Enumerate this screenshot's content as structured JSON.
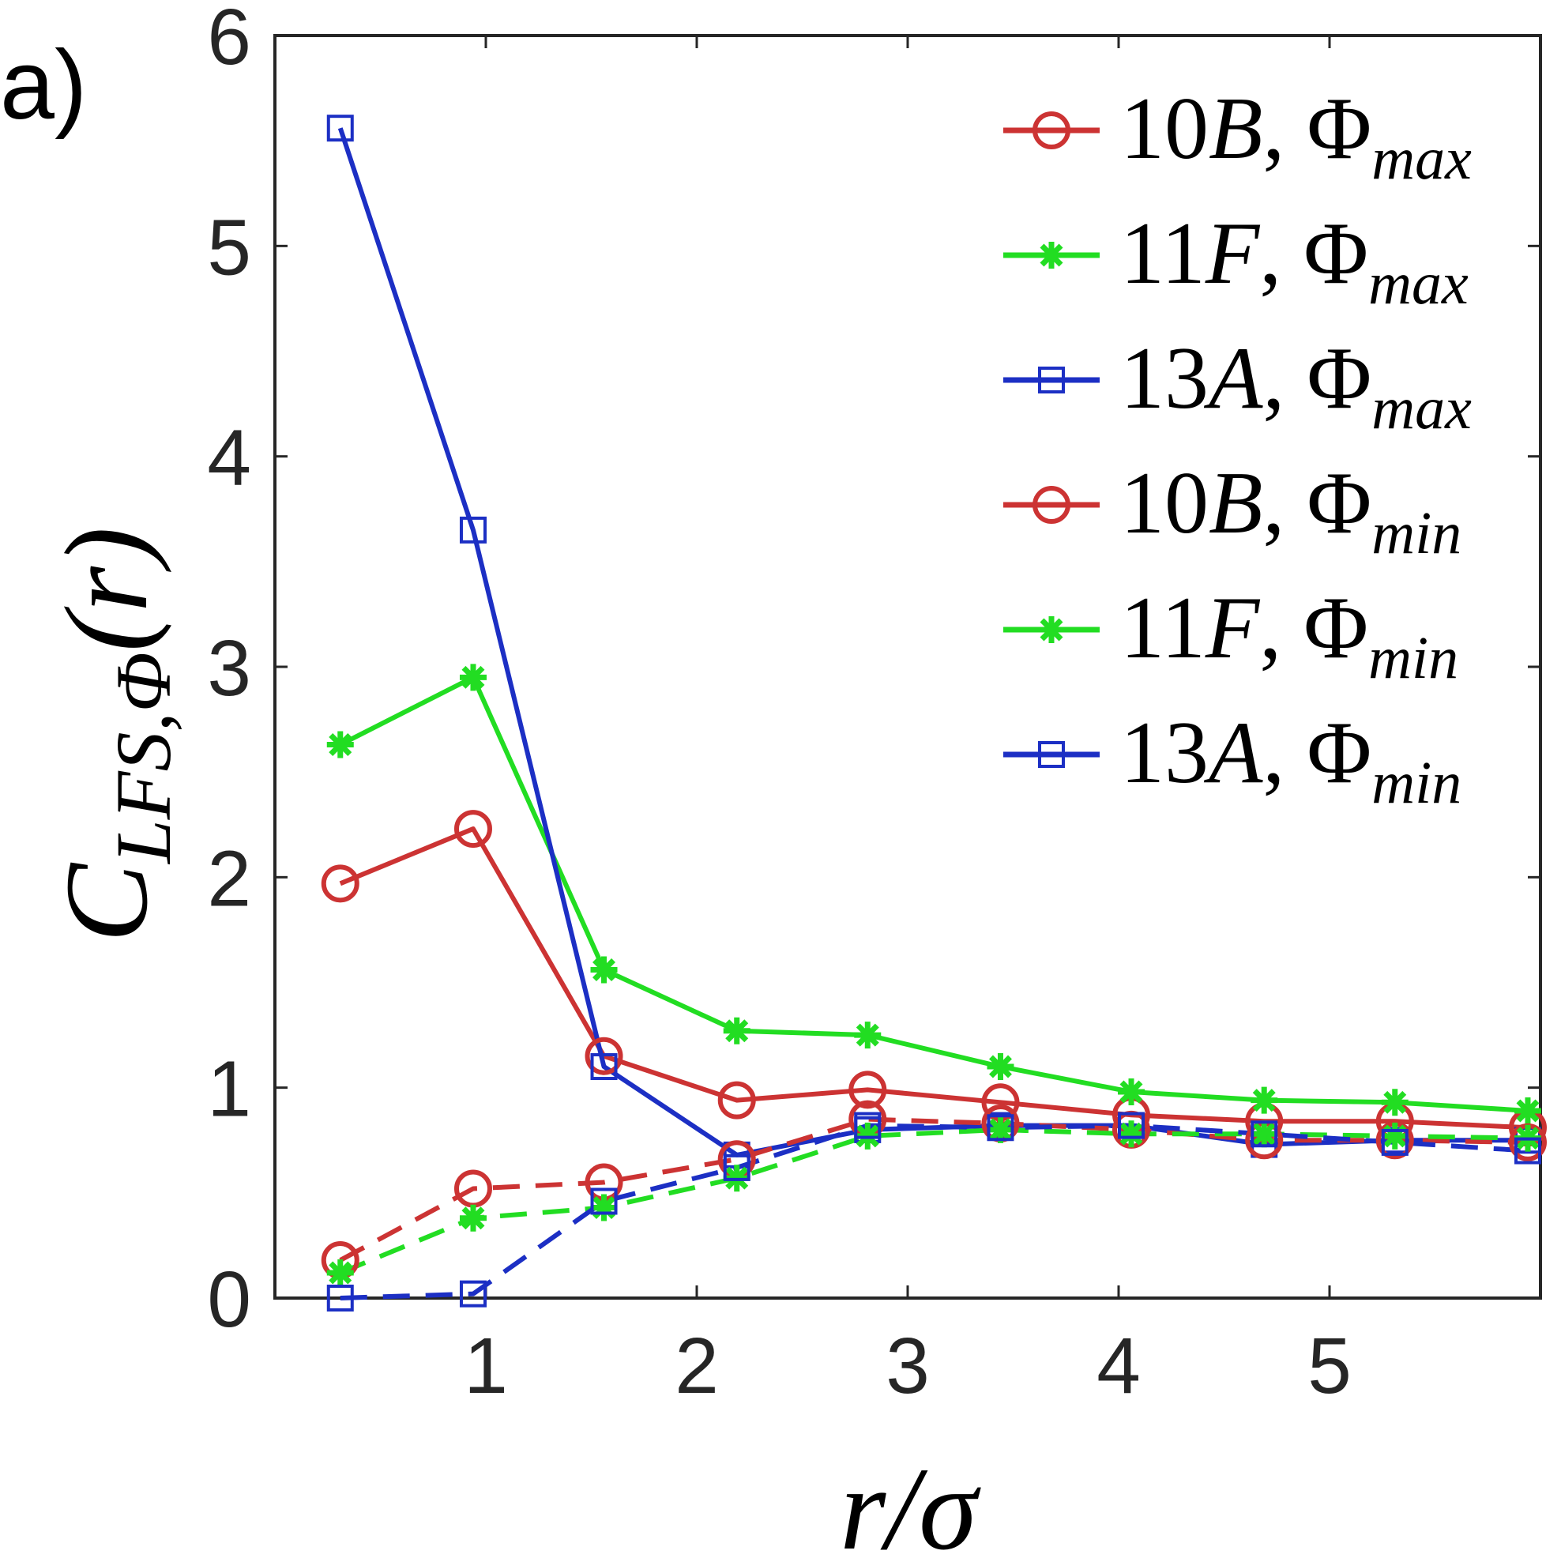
{
  "panel_label": "a)",
  "chart_data": {
    "type": "line",
    "title": "",
    "xlabel": "r/σ",
    "ylabel_main": "C",
    "ylabel_sub": "LFS,Φ",
    "ylabel_tail": "(r)",
    "xlim": [
      0.0,
      6.0
    ],
    "ylim": [
      0,
      6
    ],
    "xticks": [
      1,
      2,
      3,
      4,
      5
    ],
    "yticks": [
      0,
      1,
      2,
      3,
      4,
      5,
      6
    ],
    "x": [
      0.31,
      0.94,
      1.56,
      2.19,
      2.81,
      3.44,
      4.06,
      4.69,
      5.31,
      5.94
    ],
    "legend_location": "top-right",
    "series": [
      {
        "name": "10B, Φmax",
        "legend": {
          "id": "10B",
          "phi": "Φ",
          "sub": "max"
        },
        "color": "#cc3333",
        "marker": "circle",
        "dash": "solid",
        "values": [
          1.97,
          2.23,
          1.15,
          0.94,
          0.99,
          0.93,
          0.87,
          0.84,
          0.84,
          0.81
        ]
      },
      {
        "name": "11F, Φmax",
        "legend": {
          "id": "11F",
          "phi": "Φ",
          "sub": "max"
        },
        "color": "#22dd22",
        "marker": "asterisk",
        "dash": "solid",
        "values": [
          2.63,
          2.95,
          1.56,
          1.27,
          1.25,
          1.1,
          0.98,
          0.94,
          0.93,
          0.89
        ]
      },
      {
        "name": "13A, Φmax",
        "legend": {
          "id": "13A",
          "phi": "Φ",
          "sub": "max"
        },
        "color": "#1c2fc4",
        "marker": "square",
        "dash": "solid",
        "values": [
          5.56,
          3.65,
          1.1,
          0.68,
          0.8,
          0.82,
          0.82,
          0.73,
          0.75,
          0.75
        ]
      },
      {
        "name": "10B, Φmin",
        "legend": {
          "id": "10B",
          "phi": "Φ",
          "sub": "min"
        },
        "color": "#cc3333",
        "marker": "circle",
        "dash": "dashed",
        "values": [
          0.18,
          0.52,
          0.55,
          0.66,
          0.85,
          0.83,
          0.8,
          0.75,
          0.75,
          0.74
        ]
      },
      {
        "name": "11F, Φmin",
        "legend": {
          "id": "11F",
          "phi": "Φ",
          "sub": "min"
        },
        "color": "#22dd22",
        "marker": "asterisk",
        "dash": "dashed",
        "values": [
          0.12,
          0.38,
          0.43,
          0.57,
          0.77,
          0.8,
          0.78,
          0.78,
          0.77,
          0.76
        ]
      },
      {
        "name": "13A, Φmin",
        "legend": {
          "id": "13A",
          "phi": "Φ",
          "sub": "min"
        },
        "color": "#1c2fc4",
        "marker": "square",
        "dash": "dashed",
        "values": [
          0.0,
          0.02,
          0.46,
          0.62,
          0.82,
          0.81,
          0.82,
          0.78,
          0.74,
          0.7
        ]
      }
    ]
  }
}
